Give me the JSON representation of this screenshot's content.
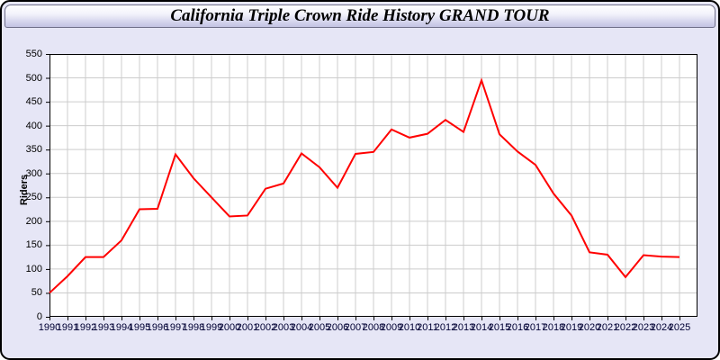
{
  "window": {
    "title": "California Triple Crown Ride History GRAND TOUR"
  },
  "chart_data": {
    "type": "line",
    "title": "California Triple Crown Ride History GRAND TOUR",
    "xlabel": "",
    "ylabel": "Riders",
    "ylim": [
      0,
      550
    ],
    "ytick_step": 50,
    "grid": true,
    "legend": null,
    "line_color": "#ff0000",
    "x": [
      1990,
      1991,
      1992,
      1993,
      1994,
      1995,
      1996,
      1997,
      1998,
      1999,
      2000,
      2001,
      2002,
      2003,
      2004,
      2005,
      2006,
      2007,
      2008,
      2009,
      2010,
      2011,
      2012,
      2013,
      2014,
      2015,
      2016,
      2017,
      2018,
      2019,
      2020,
      2021,
      2022,
      2023,
      2024,
      2025
    ],
    "values": [
      50,
      85,
      125,
      125,
      160,
      225,
      226,
      340,
      290,
      250,
      210,
      212,
      268,
      279,
      342,
      313,
      270,
      341,
      345,
      392,
      375,
      383,
      412,
      387,
      495,
      382,
      346,
      318,
      258,
      212,
      135,
      130,
      83,
      129,
      126,
      125
    ]
  },
  "colors": {
    "window_background": "#e6e6f6",
    "plot_background": "#ffffff",
    "grid": "#cccccc",
    "plot_border": "#000000",
    "line": "#ff0000",
    "x_label_color": "#000033",
    "y_label_color": "#000000"
  }
}
